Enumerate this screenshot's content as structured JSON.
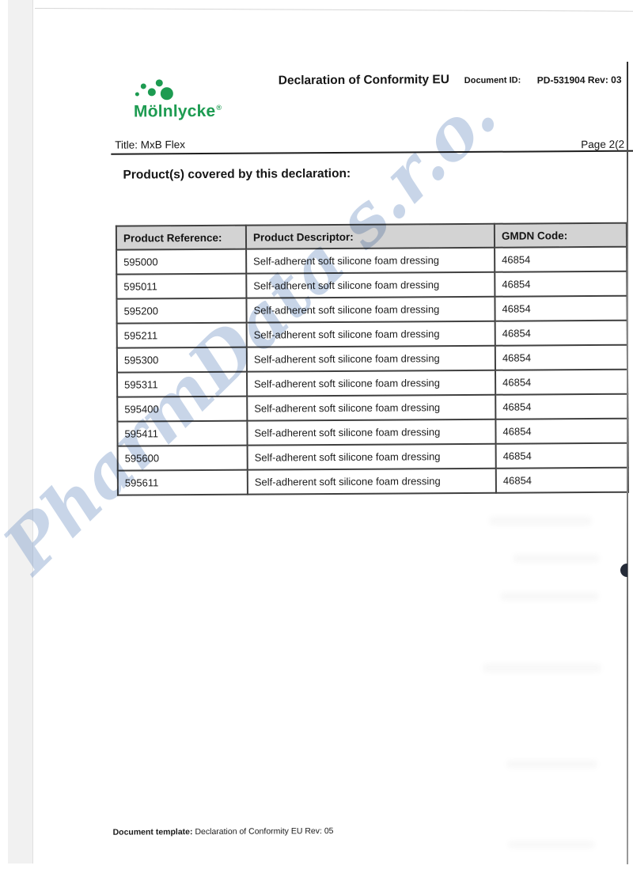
{
  "logo": {
    "brand": "Mölnlycke",
    "registered": "®"
  },
  "header": {
    "title": "Declaration of Conformity EU",
    "document_id_label": "Document ID:",
    "document_id_value": "PD-531904 Rev: 03"
  },
  "title_bar": {
    "title": "Title: MxB Flex",
    "page": "Page 2(2"
  },
  "section_heading": "Product(s) covered by this declaration:",
  "table": {
    "columns": [
      "Product Reference:",
      "Product Descriptor:",
      "GMDN Code:"
    ],
    "rows": [
      [
        "595000",
        "Self-adherent soft silicone foam dressing",
        "46854"
      ],
      [
        "595011",
        "Self-adherent soft silicone foam dressing",
        "46854"
      ],
      [
        "595200",
        "Self-adherent soft silicone foam dressing",
        "46854"
      ],
      [
        "595211",
        "Self-adherent soft silicone foam dressing",
        "46854"
      ],
      [
        "595300",
        "Self-adherent soft silicone foam dressing",
        "46854"
      ],
      [
        "595311",
        "Self-adherent soft silicone foam dressing",
        "46854"
      ],
      [
        "595400",
        "Self-adherent soft silicone foam dressing",
        "46854"
      ],
      [
        "595411",
        "Self-adherent soft silicone foam dressing",
        "46854"
      ],
      [
        "595600",
        "Self-adherent soft silicone foam dressing",
        "46854"
      ],
      [
        "595611",
        "Self-adherent soft silicone foam dressing",
        "46854"
      ]
    ]
  },
  "watermark": "PharmData s.r.o.",
  "footer": {
    "label": "Document template:",
    "value": "Declaration of Conformity EU Rev: 05"
  },
  "colors": {
    "brand_green": "#1d9b51",
    "watermark_blue": "#7b9bc8",
    "table_header_bg": "#d3d3d3",
    "table_border": "#404040"
  }
}
